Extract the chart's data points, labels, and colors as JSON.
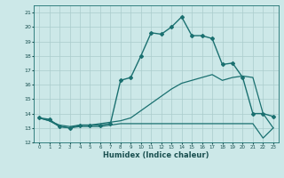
{
  "xlabel": "Humidex (Indice chaleur)",
  "bg_color": "#cce8e8",
  "grid_color": "#aacccc",
  "line_color": "#1a7070",
  "xlim": [
    -0.5,
    23.5
  ],
  "ylim": [
    12,
    21.5
  ],
  "yticks": [
    12,
    13,
    14,
    15,
    16,
    17,
    18,
    19,
    20,
    21
  ],
  "xticks": [
    0,
    1,
    2,
    3,
    4,
    5,
    6,
    7,
    8,
    9,
    10,
    11,
    12,
    13,
    14,
    15,
    16,
    17,
    18,
    19,
    20,
    21,
    22,
    23
  ],
  "series": [
    {
      "x": [
        0,
        1,
        2,
        3,
        4,
        5,
        6,
        7,
        8,
        9,
        10,
        11,
        12,
        13,
        14,
        15,
        16,
        17,
        18,
        19,
        20,
        21,
        22,
        23
      ],
      "y": [
        13.7,
        13.6,
        13.1,
        13.0,
        13.2,
        13.2,
        13.2,
        13.3,
        16.3,
        16.5,
        18.0,
        19.6,
        19.5,
        20.0,
        20.7,
        19.4,
        19.4,
        19.2,
        17.4,
        17.5,
        16.5,
        14.0,
        14.0,
        13.8
      ],
      "marker": "D",
      "markersize": 2.0,
      "linewidth": 1.0
    },
    {
      "x": [
        0,
        1,
        2,
        3,
        4,
        5,
        6,
        7,
        8,
        9,
        10,
        11,
        12,
        13,
        14,
        15,
        16,
        17,
        18,
        19,
        20,
        21,
        22,
        23
      ],
      "y": [
        13.7,
        13.5,
        13.1,
        13.0,
        13.1,
        13.1,
        13.1,
        13.2,
        13.3,
        13.3,
        13.3,
        13.3,
        13.3,
        13.3,
        13.3,
        13.3,
        13.3,
        13.3,
        13.3,
        13.3,
        13.3,
        13.3,
        12.3,
        13.0
      ],
      "marker": null,
      "linewidth": 0.9
    },
    {
      "x": [
        0,
        1,
        2,
        3,
        4,
        5,
        6,
        7,
        8,
        9,
        10,
        11,
        12,
        13,
        14,
        15,
        16,
        17,
        18,
        19,
        20,
        21,
        22,
        23
      ],
      "y": [
        13.7,
        13.5,
        13.2,
        13.1,
        13.2,
        13.2,
        13.3,
        13.4,
        13.5,
        13.7,
        14.2,
        14.7,
        15.2,
        15.7,
        16.1,
        16.3,
        16.5,
        16.7,
        16.3,
        16.5,
        16.6,
        16.5,
        14.0,
        13.0
      ],
      "marker": null,
      "linewidth": 0.9
    }
  ]
}
